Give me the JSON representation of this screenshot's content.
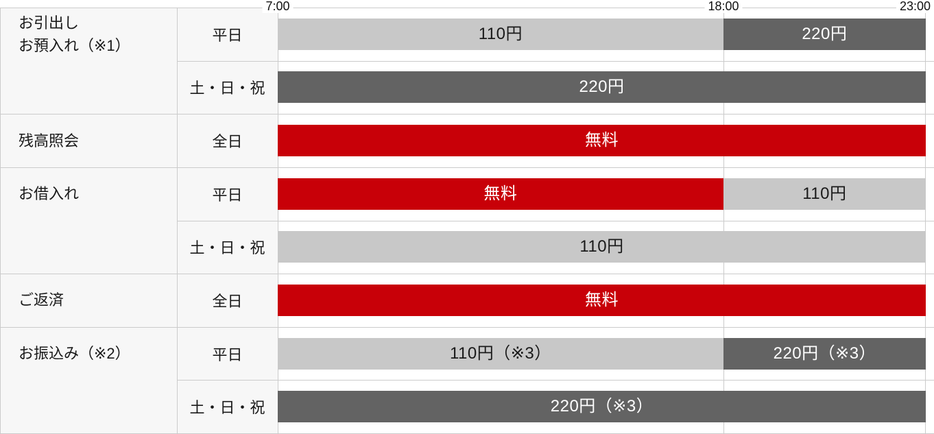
{
  "chart_data": {
    "type": "table",
    "time_axis": {
      "labels": [
        "7:00",
        "18:00",
        "23:00"
      ],
      "hours": [
        7,
        18,
        23
      ],
      "range_hours": [
        7,
        23
      ]
    },
    "categories": [
      {
        "label": "お引出し\nお預入れ（※1）",
        "row_start": 0,
        "row_span": 2
      },
      {
        "label": "残高照会",
        "row_start": 2,
        "row_span": 1
      },
      {
        "label": "お借入れ",
        "row_start": 3,
        "row_span": 2
      },
      {
        "label": "ご返済",
        "row_start": 5,
        "row_span": 1
      },
      {
        "label": "お振込み（※2）",
        "row_start": 6,
        "row_span": 2
      }
    ],
    "rows": [
      {
        "category_index": 0,
        "day": "平日",
        "segments": [
          {
            "from": 7,
            "to": 18,
            "label": "110円",
            "color": "light_gray"
          },
          {
            "from": 18,
            "to": 23,
            "label": "220円",
            "color": "dark_gray"
          }
        ]
      },
      {
        "category_index": 0,
        "day": "土・日・祝",
        "segments": [
          {
            "from": 7,
            "to": 23,
            "label": "220円",
            "color": "dark_gray"
          }
        ]
      },
      {
        "category_index": 1,
        "day": "全日",
        "segments": [
          {
            "from": 7,
            "to": 23,
            "label": "無料",
            "color": "red"
          }
        ]
      },
      {
        "category_index": 2,
        "day": "平日",
        "segments": [
          {
            "from": 7,
            "to": 18,
            "label": "無料",
            "color": "red"
          },
          {
            "from": 18,
            "to": 23,
            "label": "110円",
            "color": "light_gray"
          }
        ]
      },
      {
        "category_index": 2,
        "day": "土・日・祝",
        "segments": [
          {
            "from": 7,
            "to": 23,
            "label": "110円",
            "color": "light_gray"
          }
        ]
      },
      {
        "category_index": 3,
        "day": "全日",
        "segments": [
          {
            "from": 7,
            "to": 23,
            "label": "無料",
            "color": "red"
          }
        ]
      },
      {
        "category_index": 4,
        "day": "平日",
        "segments": [
          {
            "from": 7,
            "to": 18,
            "label": "110円（※3）",
            "color": "light_gray"
          },
          {
            "from": 18,
            "to": 23,
            "label": "220円（※3）",
            "color": "dark_gray"
          }
        ]
      },
      {
        "category_index": 4,
        "day": "土・日・祝",
        "segments": [
          {
            "from": 7,
            "to": 23,
            "label": "220円（※3）",
            "color": "dark_gray"
          }
        ]
      }
    ],
    "colors": {
      "red": "#c80008",
      "light_gray": "#c8c8c8",
      "dark_gray": "#636363",
      "panel_bg": "#f7f7f7",
      "grid_line": "#cbcbcb",
      "text_dark": "#1a1a1a",
      "text_light": "#ffffff"
    }
  }
}
